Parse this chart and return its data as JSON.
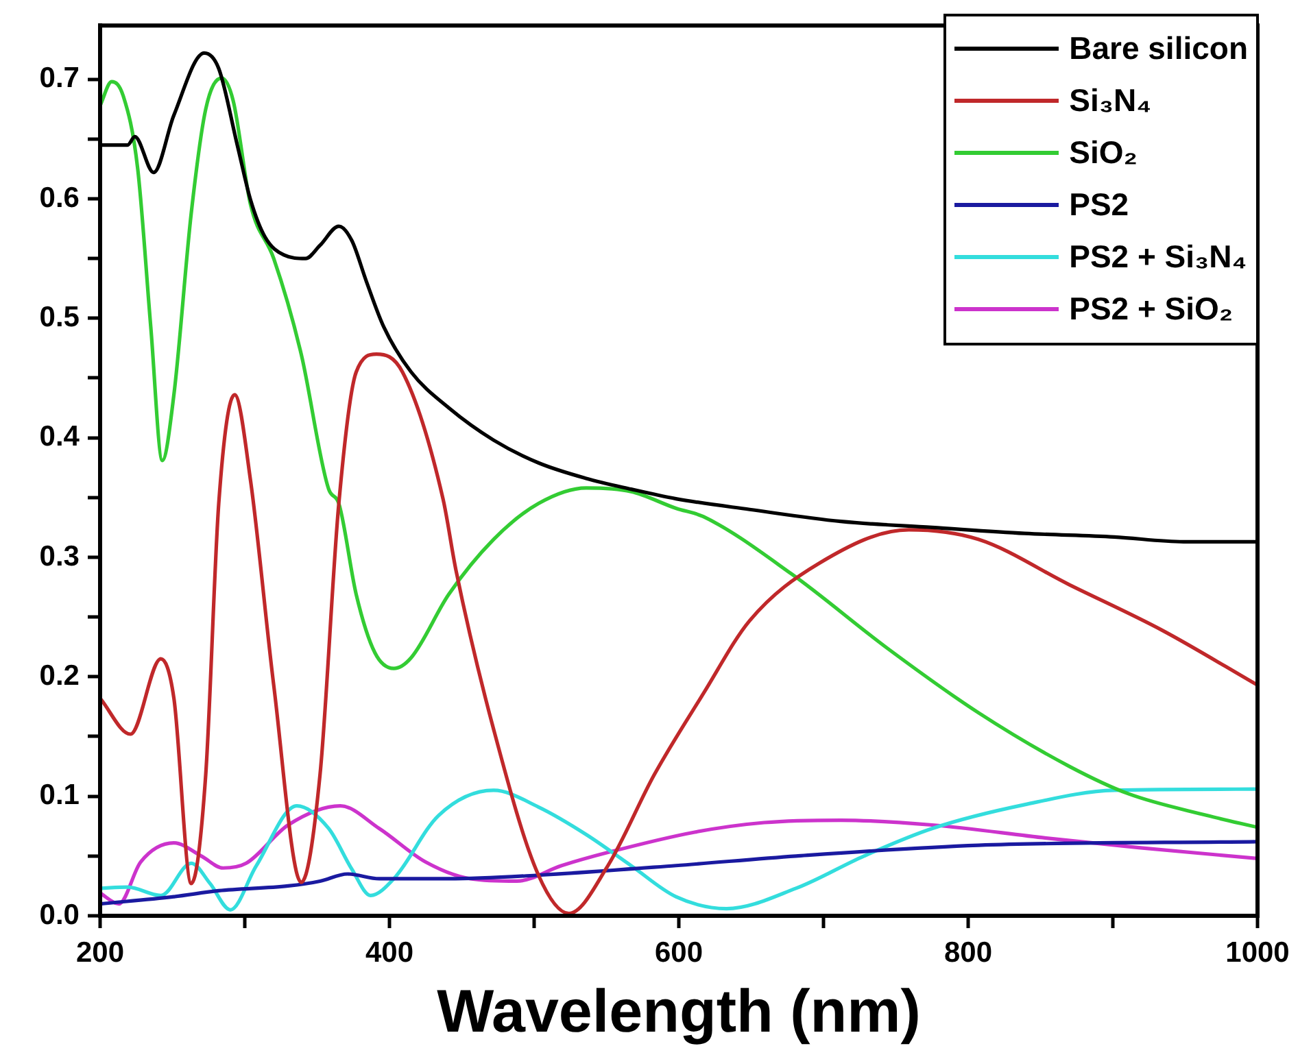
{
  "chart_data": {
    "type": "line",
    "xlabel": "Wavelength (nm)",
    "legend": "top right",
    "grid": false,
    "xlim": [
      200,
      1000
    ],
    "xticks": [
      200,
      {
        "value": 300,
        "label": null
      },
      400,
      {
        "value": 500,
        "label": null
      },
      600,
      {
        "value": 700,
        "label": null
      },
      800,
      {
        "value": 900,
        "label": null
      },
      1000
    ],
    "ylim": [
      0,
      0.745
    ],
    "yticks": [
      {
        "value": 0,
        "label": "0.0"
      },
      {
        "value": 0.05,
        "label": null
      },
      0.1,
      {
        "value": 0.15,
        "label": null
      },
      0.2,
      {
        "value": 0.25,
        "label": null
      },
      0.3,
      {
        "value": 0.35,
        "label": null
      },
      0.4,
      {
        "value": 0.45,
        "label": null
      },
      0.5,
      {
        "value": 0.55,
        "label": null
      },
      0.6,
      {
        "value": 0.65,
        "label": null
      },
      0.7
    ],
    "series": [
      {
        "name": "Bare silicon",
        "color": "#000000",
        "x": [
          200,
          219,
          224,
          237,
          251,
          272,
          282,
          295,
          304,
          314,
          327,
          342,
          352,
          365,
          374,
          384,
          396,
          415,
          441,
          472,
          503,
          536,
          567,
          598,
          649,
          712,
          775,
          839,
          901,
          949,
          1000
        ],
        "values": [
          0.645,
          0.645,
          0.652,
          0.622,
          0.67,
          0.722,
          0.709,
          0.644,
          0.599,
          0.568,
          0.553,
          0.55,
          0.561,
          0.577,
          0.565,
          0.531,
          0.493,
          0.455,
          0.425,
          0.398,
          0.379,
          0.366,
          0.357,
          0.349,
          0.34,
          0.33,
          0.325,
          0.32,
          0.317,
          0.313,
          0.313
        ]
      },
      {
        "name": "Si₃N₄",
        "color": "#c0282a",
        "x": [
          200,
          221,
          242,
          251,
          263,
          273,
          282,
          293,
          304,
          320,
          339,
          352,
          365,
          377,
          391,
          409,
          437,
          446,
          472,
          503,
          524,
          551,
          583,
          617,
          649,
          697,
          759,
          807,
          870,
          934,
          1000
        ],
        "values": [
          0.182,
          0.152,
          0.215,
          0.182,
          0.027,
          0.118,
          0.345,
          0.436,
          0.364,
          0.193,
          0.028,
          0.118,
          0.345,
          0.455,
          0.47,
          0.455,
          0.349,
          0.289,
          0.156,
          0.034,
          0.002,
          0.042,
          0.118,
          0.186,
          0.247,
          0.295,
          0.323,
          0.315,
          0.277,
          0.239,
          0.193
        ]
      },
      {
        "name": "SiO₂",
        "color": "#33cc33",
        "x": [
          200,
          208,
          216,
          226,
          235,
          243,
          251,
          263,
          273,
          284,
          292,
          304,
          320,
          339,
          358,
          365,
          377,
          390,
          403,
          415,
          441,
          472,
          503,
          536,
          567,
          598,
          617,
          678,
          744,
          807,
          870,
          911,
          965,
          1000
        ],
        "values": [
          0.678,
          0.698,
          0.686,
          0.625,
          0.493,
          0.381,
          0.436,
          0.588,
          0.675,
          0.701,
          0.682,
          0.595,
          0.55,
          0.47,
          0.357,
          0.345,
          0.269,
          0.22,
          0.207,
          0.216,
          0.269,
          0.315,
          0.345,
          0.358,
          0.355,
          0.341,
          0.334,
          0.286,
          0.224,
          0.17,
          0.125,
          0.102,
          0.084,
          0.074
        ]
      },
      {
        "name": "PS2",
        "color": "#1a1aa0",
        "x": [
          200,
          251,
          282,
          330,
          352,
          371,
          393,
          441,
          503,
          598,
          681,
          807,
          1000
        ],
        "values": [
          0.01,
          0.016,
          0.021,
          0.025,
          0.029,
          0.035,
          0.031,
          0.031,
          0.034,
          0.042,
          0.05,
          0.059,
          0.062
        ]
      },
      {
        "name": "PS2 + Si₃N₄",
        "color": "#33dddd",
        "x": [
          200,
          219,
          242,
          263,
          276,
          290,
          308,
          336,
          358,
          374,
          387,
          403,
          434,
          472,
          503,
          536,
          567,
          598,
          633,
          681,
          728,
          775,
          839,
          901,
          1000
        ],
        "values": [
          0.023,
          0.024,
          0.017,
          0.044,
          0.027,
          0.005,
          0.042,
          0.092,
          0.073,
          0.039,
          0.017,
          0.031,
          0.084,
          0.105,
          0.091,
          0.068,
          0.042,
          0.016,
          0.006,
          0.023,
          0.05,
          0.073,
          0.093,
          0.105,
          0.106
        ]
      },
      {
        "name": "PS2 + SiO₂",
        "color": "#cc33cc",
        "x": [
          200,
          213,
          228,
          251,
          270,
          285,
          301,
          330,
          366,
          393,
          425,
          456,
          488,
          519,
          551,
          611,
          659,
          712,
          775,
          854,
          918,
          1000
        ],
        "values": [
          0.019,
          0.01,
          0.045,
          0.061,
          0.05,
          0.04,
          0.044,
          0.076,
          0.092,
          0.073,
          0.045,
          0.031,
          0.029,
          0.042,
          0.053,
          0.07,
          0.078,
          0.08,
          0.076,
          0.065,
          0.057,
          0.048
        ]
      }
    ]
  }
}
